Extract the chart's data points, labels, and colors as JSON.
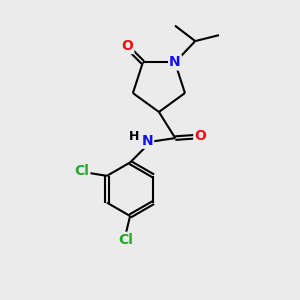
{
  "bg_color": "#ebebeb",
  "atom_colors": {
    "C": "#000000",
    "N": "#1010ee",
    "O": "#ee1010",
    "Cl": "#22aa22",
    "H": "#000000"
  },
  "bond_color": "#000000",
  "bond_width": 1.5,
  "doffset": 0.07,
  "font_size": 10,
  "fig_w": 3.0,
  "fig_h": 3.0,
  "xlim": [
    0,
    10
  ],
  "ylim": [
    0,
    10
  ]
}
